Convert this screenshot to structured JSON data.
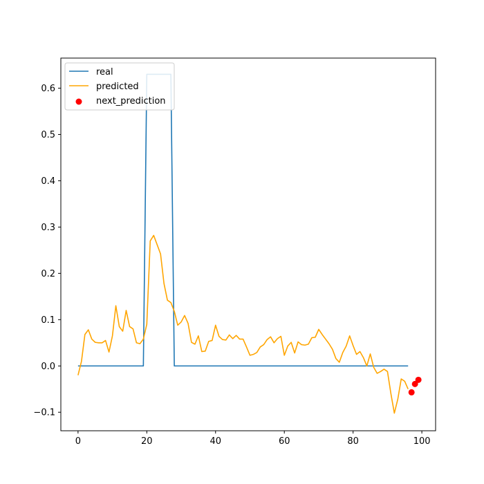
{
  "chart_data": {
    "type": "line",
    "title": "",
    "xlabel": "",
    "ylabel": "",
    "xlim": [
      -5,
      104
    ],
    "ylim": [
      -0.14,
      0.665
    ],
    "x_ticks": [
      0,
      20,
      40,
      60,
      80,
      100
    ],
    "y_ticks": [
      -0.1,
      0.0,
      0.1,
      0.2,
      0.3,
      0.4,
      0.5,
      0.6
    ],
    "y_tick_labels": [
      "−0.1",
      "0.0",
      "0.1",
      "0.2",
      "0.3",
      "0.4",
      "0.5",
      "0.6"
    ],
    "grid": false,
    "legend_position": "top-left",
    "series": [
      {
        "name": "real",
        "kind": "line",
        "color": "#1f77b4",
        "x": [
          0,
          19,
          20,
          27,
          28,
          96
        ],
        "y": [
          0,
          0,
          0.63,
          0.63,
          0,
          0
        ]
      },
      {
        "name": "predicted",
        "kind": "line",
        "color": "#ffa500",
        "x": [
          0,
          1,
          2,
          3,
          4,
          5,
          6,
          7,
          8,
          9,
          10,
          11,
          12,
          13,
          14,
          15,
          16,
          17,
          18,
          19,
          20,
          21,
          22,
          23,
          24,
          25,
          26,
          27,
          28,
          29,
          30,
          31,
          32,
          33,
          34,
          35,
          36,
          37,
          38,
          39,
          40,
          41,
          42,
          43,
          44,
          45,
          46,
          47,
          48,
          49,
          50,
          51,
          52,
          53,
          54,
          55,
          56,
          57,
          58,
          59,
          60,
          61,
          62,
          63,
          64,
          65,
          66,
          67,
          68,
          69,
          70,
          71,
          72,
          73,
          74,
          75,
          76,
          77,
          78,
          79,
          80,
          81,
          82,
          83,
          84,
          85,
          86,
          87,
          88,
          89,
          90,
          91,
          92,
          93,
          94,
          95,
          96
        ],
        "y": [
          -0.02,
          0.01,
          0.068,
          0.078,
          0.058,
          0.051,
          0.05,
          0.05,
          0.055,
          0.03,
          0.065,
          0.13,
          0.085,
          0.075,
          0.12,
          0.085,
          0.08,
          0.05,
          0.048,
          0.058,
          0.09,
          0.27,
          0.282,
          0.262,
          0.242,
          0.178,
          0.142,
          0.137,
          0.118,
          0.088,
          0.095,
          0.109,
          0.092,
          0.051,
          0.047,
          0.065,
          0.031,
          0.032,
          0.053,
          0.055,
          0.088,
          0.064,
          0.057,
          0.056,
          0.067,
          0.059,
          0.066,
          0.058,
          0.058,
          0.041,
          0.023,
          0.025,
          0.029,
          0.041,
          0.046,
          0.057,
          0.063,
          0.05,
          0.059,
          0.064,
          0.023,
          0.043,
          0.051,
          0.028,
          0.052,
          0.046,
          0.045,
          0.047,
          0.061,
          0.062,
          0.079,
          0.068,
          0.058,
          0.048,
          0.036,
          0.016,
          0.008,
          0.029,
          0.043,
          0.065,
          0.044,
          0.025,
          0.031,
          0.018,
          0.0,
          0.026,
          -0.003,
          -0.016,
          -0.012,
          -0.007,
          -0.012,
          -0.06,
          -0.102,
          -0.072,
          -0.028,
          -0.033,
          -0.05
        ]
      },
      {
        "name": "next_prediction",
        "kind": "scatter",
        "color": "#ff0000",
        "x": [
          97,
          98,
          99
        ],
        "y": [
          -0.057,
          -0.039,
          -0.03
        ]
      }
    ]
  }
}
